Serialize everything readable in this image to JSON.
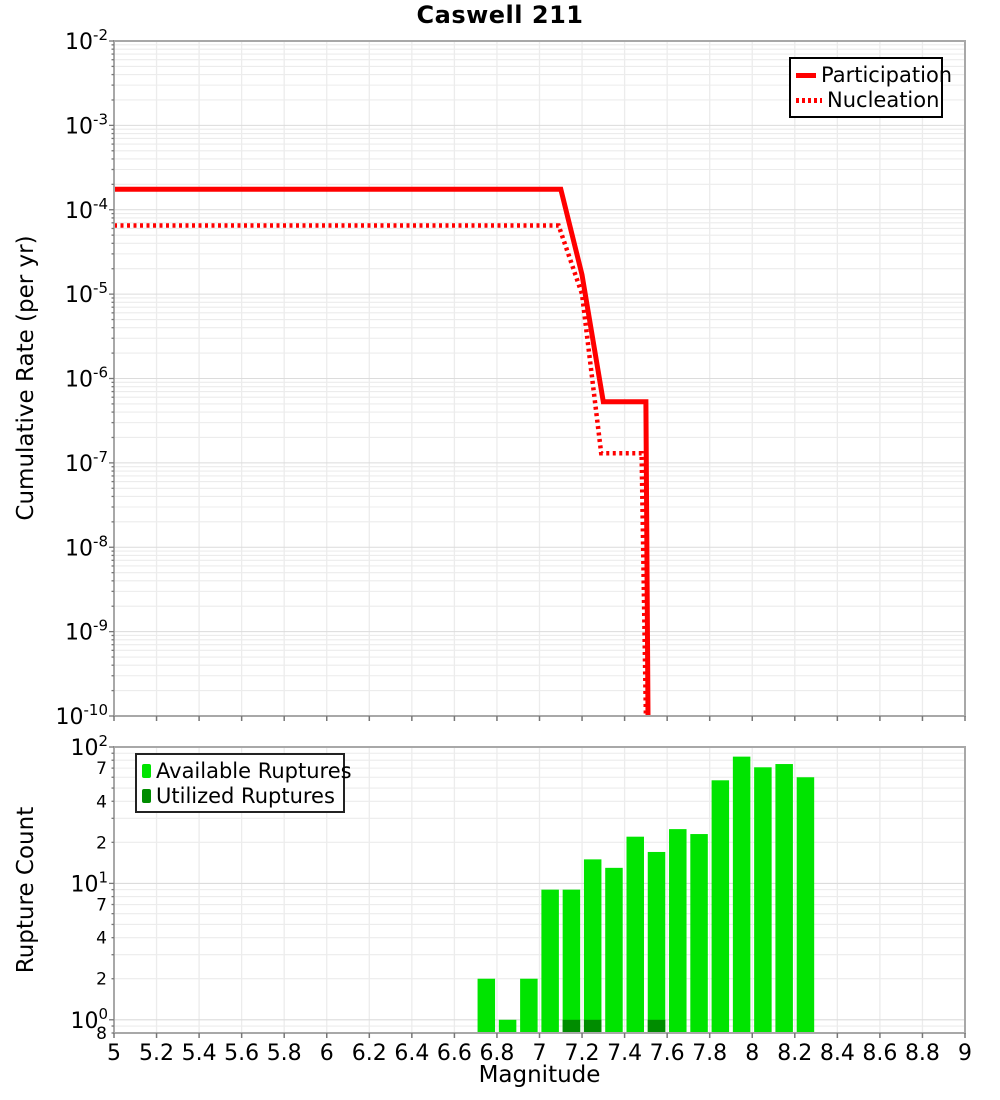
{
  "title": "Caswell 211",
  "colors": {
    "line": "#ff0000",
    "available": "#00e400",
    "utilized": "#008c00",
    "grid": "#ececec",
    "grid_major": "#dcdcdc",
    "axis": "#a8a8a8",
    "tick": "#777777",
    "text": "#000000",
    "background": "#ffffff"
  },
  "x_ticks": [
    {
      "value": 5,
      "label": "5"
    },
    {
      "value": 5.2,
      "label": "5.2"
    },
    {
      "value": 5.4,
      "label": "5.4"
    },
    {
      "value": 5.6,
      "label": "5.6"
    },
    {
      "value": 5.8,
      "label": "5.8"
    },
    {
      "value": 6,
      "label": "6"
    },
    {
      "value": 6.2,
      "label": "6.2"
    },
    {
      "value": 6.4,
      "label": "6.4"
    },
    {
      "value": 6.6,
      "label": "6.6"
    },
    {
      "value": 6.8,
      "label": "6.8"
    },
    {
      "value": 7,
      "label": "7"
    },
    {
      "value": 7.2,
      "label": "7.2"
    },
    {
      "value": 7.4,
      "label": "7.4"
    },
    {
      "value": 7.6,
      "label": "7.6"
    },
    {
      "value": 7.8,
      "label": "7.8"
    },
    {
      "value": 8,
      "label": "8"
    },
    {
      "value": 8.2,
      "label": "8.2"
    },
    {
      "value": 8.4,
      "label": "8.4"
    },
    {
      "value": 8.6,
      "label": "8.6"
    },
    {
      "value": 8.8,
      "label": "8.8"
    },
    {
      "value": 9,
      "label": "9"
    }
  ],
  "top_panel": {
    "ylabel": "Cumulative Rate (per yr)",
    "y_major_exponents": [
      -2,
      -3,
      -4,
      -5,
      -6,
      -7,
      -8,
      -9,
      -10
    ],
    "legend": [
      {
        "label": "Participation",
        "marker": "solid-red"
      },
      {
        "label": "Nucleation",
        "marker": "dotted-red"
      }
    ]
  },
  "bottom_panel": {
    "ylabel": "Rupture Count",
    "xlabel": "Magnitude",
    "y_major_exponents": [
      2,
      1,
      0
    ],
    "y_minor_labels": [
      {
        "value": 70,
        "text": "7"
      },
      {
        "value": 40,
        "text": "4"
      },
      {
        "value": 20,
        "text": "2"
      },
      {
        "value": 7,
        "text": "7"
      },
      {
        "value": 4,
        "text": "4"
      },
      {
        "value": 2,
        "text": "2"
      },
      {
        "value": 0.8,
        "text": "8"
      }
    ],
    "legend": [
      {
        "label": "Available Ruptures",
        "marker": "sq-available"
      },
      {
        "label": "Utilized Ruptures",
        "marker": "sq-utilized"
      }
    ]
  },
  "chart_data": [
    {
      "type": "line",
      "title": "Caswell 211",
      "ylabel": "Cumulative Rate (per yr)",
      "xlabel": "Magnitude",
      "xlim": [
        5,
        9
      ],
      "ylim": [
        1e-10,
        0.01
      ],
      "yscale": "log",
      "grid": true,
      "legend_position": "top-right",
      "series": [
        {
          "name": "Participation",
          "style": "solid",
          "color": "#ff0000",
          "points": [
            [
              5.0,
              0.000175
            ],
            [
              7.1,
              0.000175
            ],
            [
              7.2,
              1.7e-05
            ],
            [
              7.3,
              5.3e-07
            ],
            [
              7.5,
              5.3e-07
            ],
            [
              7.51,
              1e-10
            ]
          ]
        },
        {
          "name": "Nucleation",
          "style": "dotted",
          "color": "#ff0000",
          "points": [
            [
              5.0,
              6.5e-05
            ],
            [
              7.09,
              6.5e-05
            ],
            [
              7.2,
              1e-05
            ],
            [
              7.29,
              1.3e-07
            ],
            [
              7.48,
              1.3e-07
            ],
            [
              7.5,
              1e-10
            ]
          ]
        }
      ]
    },
    {
      "type": "bar",
      "ylabel": "Rupture Count",
      "xlabel": "Magnitude",
      "xlim": [
        5,
        9
      ],
      "ylim": [
        0.8,
        100
      ],
      "yscale": "log",
      "bin_width": 0.1,
      "legend_position": "top-left",
      "categories": [
        6.75,
        6.85,
        6.95,
        7.05,
        7.15,
        7.25,
        7.35,
        7.45,
        7.55,
        7.65,
        7.75,
        7.85,
        7.95,
        8.05,
        8.15,
        8.25
      ],
      "series": [
        {
          "name": "Available Ruptures",
          "color": "#00e400",
          "values": [
            2,
            1,
            2,
            9,
            9,
            15,
            13,
            22,
            17,
            25,
            23,
            57,
            85,
            71,
            75,
            60
          ]
        },
        {
          "name": "Utilized Ruptures",
          "color": "#008c00",
          "values": [
            0,
            0,
            0,
            0,
            1,
            1,
            0,
            0,
            1,
            0,
            0,
            0,
            0,
            0,
            0,
            0
          ]
        }
      ]
    }
  ]
}
